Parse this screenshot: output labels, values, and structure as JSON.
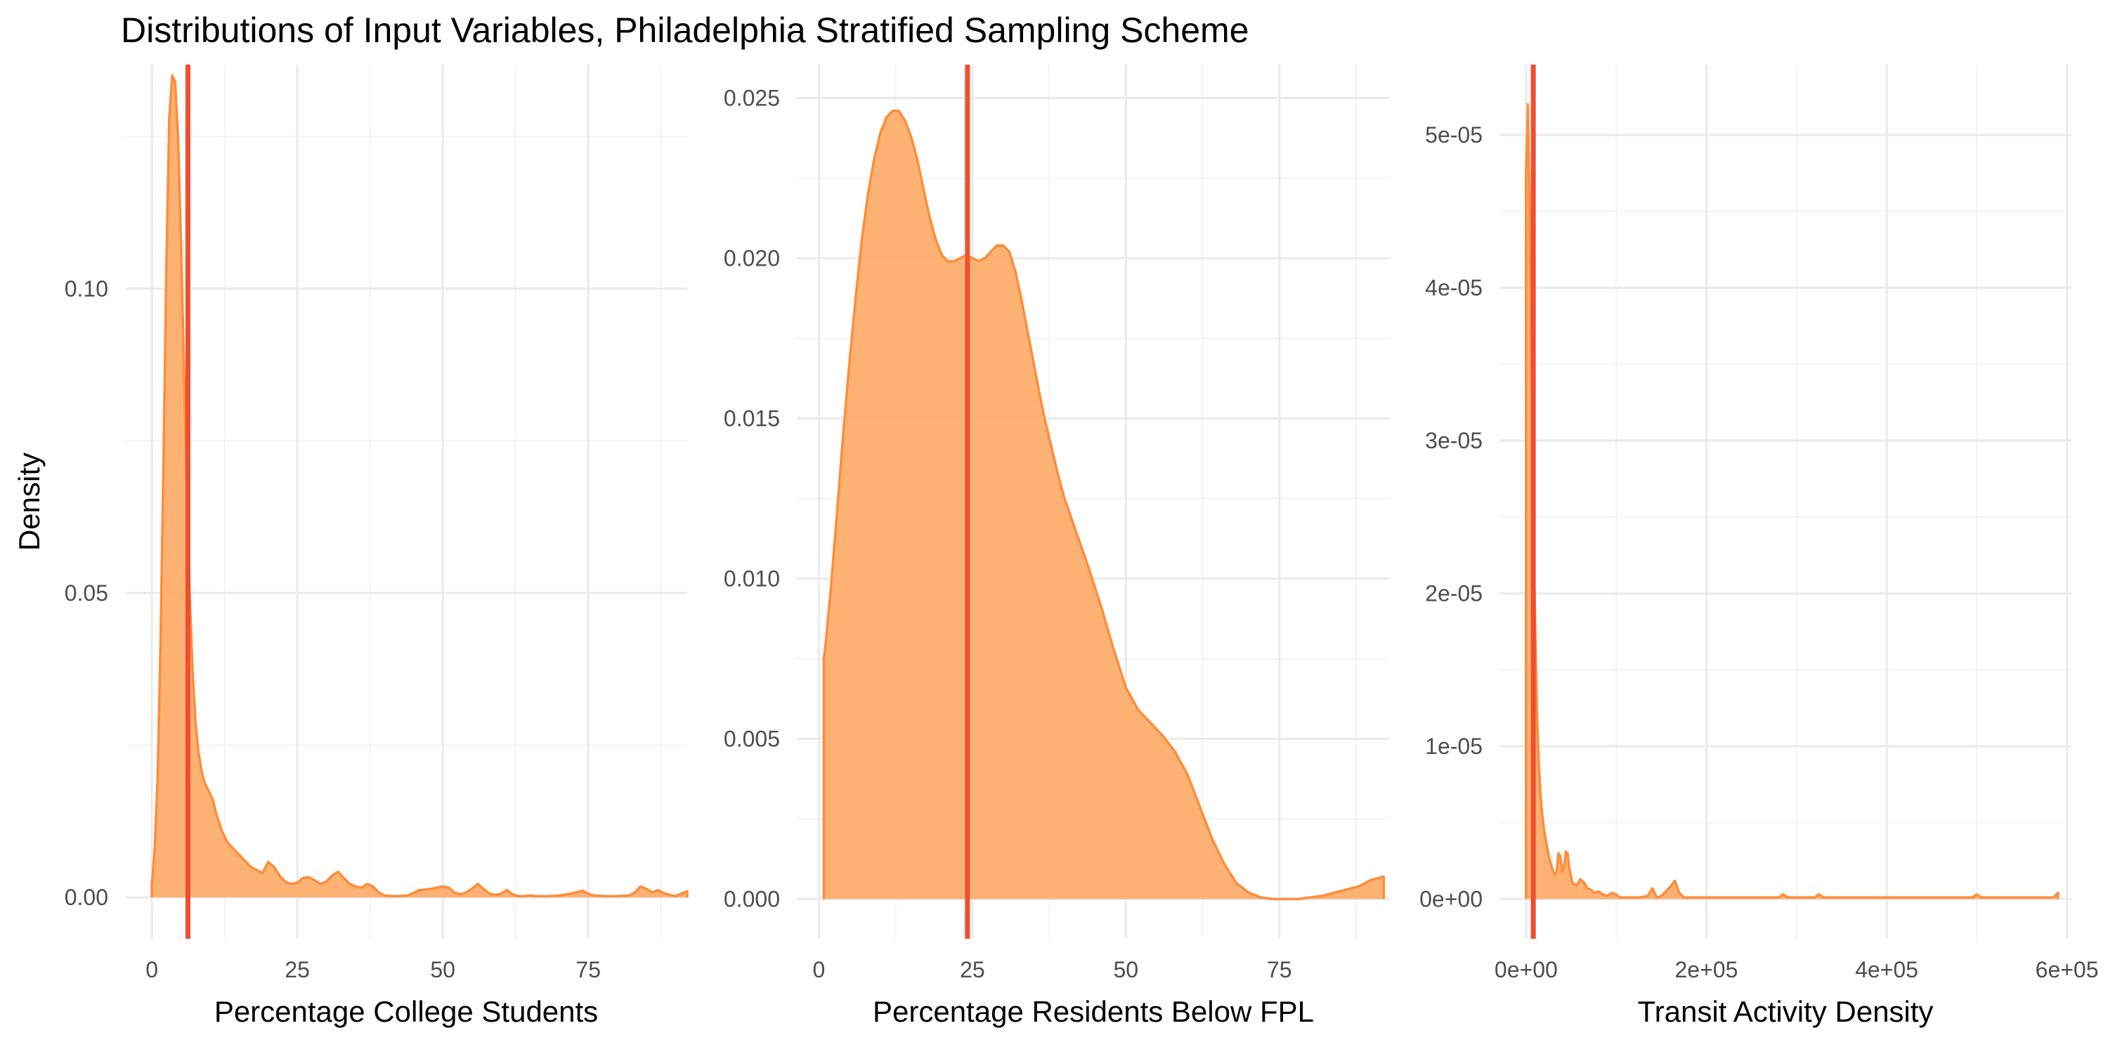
{
  "title": "Distributions of Input Variables, Philadelphia Stratified Sampling Scheme",
  "colors": {
    "fill": "#fdae6b",
    "outline": "#fd8d3c",
    "vline": "#f04e2e",
    "grid": "#ebebeb"
  },
  "chart_data": [
    {
      "type": "area",
      "xlabel": "Percentage College Students",
      "ylabel": "Density",
      "xlim": [
        -4.6,
        92
      ],
      "ylim": [
        -0.0068,
        0.1368
      ],
      "x_ticks": [
        0,
        25,
        50,
        75
      ],
      "x_tick_labels": [
        "0",
        "25",
        "50",
        "75"
      ],
      "y_ticks": [
        0,
        0.05,
        0.1
      ],
      "y_tick_labels": [
        "0.00",
        "0.05",
        "0.10"
      ],
      "grid": true,
      "vline": 6.2,
      "density": {
        "x": [
          0,
          0.5,
          1,
          1.5,
          2,
          2.5,
          3,
          3.5,
          4,
          4.5,
          5,
          5.5,
          6,
          6.5,
          7,
          7.5,
          8,
          8.5,
          9,
          9.5,
          10,
          10.5,
          11,
          12,
          13,
          14,
          15,
          16,
          17,
          18,
          19,
          20,
          21,
          22,
          23,
          24,
          25,
          26,
          27,
          28,
          29,
          30,
          31,
          32,
          33,
          34,
          35,
          36,
          37,
          38,
          39,
          40,
          42,
          44,
          46,
          48,
          50,
          51,
          52,
          53,
          54,
          55,
          56,
          57,
          58,
          59,
          60,
          61,
          62,
          63,
          64,
          65,
          66,
          68,
          70,
          72,
          74,
          75,
          76,
          78,
          80,
          82,
          83,
          84,
          85,
          86,
          87,
          88,
          89,
          90,
          91,
          92
        ],
        "y": [
          0.002,
          0.008,
          0.02,
          0.042,
          0.072,
          0.104,
          0.128,
          0.135,
          0.134,
          0.125,
          0.108,
          0.088,
          0.068,
          0.05,
          0.037,
          0.029,
          0.024,
          0.021,
          0.019,
          0.018,
          0.017,
          0.016,
          0.014,
          0.011,
          0.009,
          0.008,
          0.007,
          0.006,
          0.005,
          0.0045,
          0.004,
          0.0058,
          0.005,
          0.0035,
          0.0025,
          0.0022,
          0.0024,
          0.0032,
          0.0033,
          0.0028,
          0.0022,
          0.0026,
          0.0036,
          0.0042,
          0.0032,
          0.0022,
          0.0018,
          0.0016,
          0.0022,
          0.0018,
          0.0008,
          0.0003,
          0.0002,
          0.0003,
          0.0012,
          0.0014,
          0.0018,
          0.0016,
          0.0008,
          0.0005,
          0.0008,
          0.0014,
          0.0022,
          0.0014,
          0.0006,
          0.0004,
          0.0006,
          0.0012,
          0.0005,
          0.0002,
          0.0002,
          0.0003,
          0.0002,
          0.0002,
          0.0003,
          0.0006,
          0.0011,
          0.0006,
          0.0003,
          0.0002,
          0.0002,
          0.0003,
          0.0008,
          0.0018,
          0.0014,
          0.0008,
          0.0012,
          0.0007,
          0.0004,
          0.0002,
          0.0006,
          0.001
        ]
      }
    },
    {
      "type": "area",
      "xlabel": "Percentage Residents Below FPL",
      "ylabel": "",
      "xlim": [
        -3.6,
        93
      ],
      "ylim": [
        -0.00124,
        0.02604
      ],
      "x_ticks": [
        0,
        25,
        50,
        75
      ],
      "x_tick_labels": [
        "0",
        "25",
        "50",
        "75"
      ],
      "y_ticks": [
        0,
        0.005,
        0.01,
        0.015,
        0.02,
        0.025
      ],
      "y_tick_labels": [
        "0.000",
        "0.005",
        "0.010",
        "0.015",
        "0.020",
        "0.025"
      ],
      "grid": true,
      "vline": 24.2,
      "density": {
        "x": [
          0.8,
          1,
          2,
          3,
          4,
          5,
          6,
          7,
          8,
          9,
          10,
          11,
          12,
          13,
          14,
          15,
          16,
          17,
          18,
          19,
          20,
          21,
          22,
          23,
          24,
          25,
          26,
          27,
          28,
          29,
          30,
          31,
          32,
          33,
          34,
          35,
          36,
          37,
          38,
          39,
          40,
          42,
          44,
          46,
          48,
          50,
          52,
          54,
          56,
          58,
          60,
          62,
          64,
          66,
          68,
          70,
          72,
          74,
          76,
          78,
          80,
          82,
          84,
          86,
          88,
          90,
          92
        ],
        "y": [
          0.0075,
          0.0078,
          0.0098,
          0.0122,
          0.0146,
          0.0168,
          0.0188,
          0.0206,
          0.022,
          0.0231,
          0.0239,
          0.0244,
          0.0246,
          0.0246,
          0.0243,
          0.0238,
          0.0231,
          0.0222,
          0.0213,
          0.0206,
          0.0201,
          0.0199,
          0.0199,
          0.02,
          0.0201,
          0.02,
          0.0199,
          0.02,
          0.0202,
          0.0204,
          0.0204,
          0.0202,
          0.0196,
          0.0187,
          0.0177,
          0.0167,
          0.0157,
          0.0148,
          0.014,
          0.0132,
          0.0125,
          0.0114,
          0.0103,
          0.0091,
          0.0078,
          0.0066,
          0.0059,
          0.0055,
          0.0051,
          0.0046,
          0.0039,
          0.0029,
          0.0019,
          0.0011,
          0.0005,
          0.0002,
          5e-05,
          0.0,
          0.0,
          0.0,
          5e-05,
          0.0001,
          0.0002,
          0.0003,
          0.0004,
          0.0006,
          0.0007
        ]
      }
    },
    {
      "type": "area",
      "xlabel": "Transit Activity Density",
      "ylabel": "",
      "xlim": [
        -29500,
        605000
      ],
      "ylim": [
        -2.6e-06,
        5.46e-05
      ],
      "x_ticks": [
        0,
        200000,
        400000,
        600000
      ],
      "x_tick_labels": [
        "0e+00",
        "2e+05",
        "4e+05",
        "6e+05"
      ],
      "y_ticks": [
        0,
        1e-05,
        2e-05,
        3e-05,
        4e-05,
        5e-05
      ],
      "y_tick_labels": [
        "0e+00",
        "1e-05",
        "2e-05",
        "3e-05",
        "4e-05",
        "5e-05"
      ],
      "grid": true,
      "vline": 8000,
      "density": {
        "x": [
          0,
          2000,
          4000,
          6000,
          8000,
          10000,
          12000,
          14000,
          16000,
          18000,
          20000,
          22000,
          24000,
          26000,
          28000,
          30000,
          32000,
          34000,
          36000,
          38000,
          40000,
          42000,
          44000,
          46000,
          48000,
          50000,
          52000,
          56000,
          60000,
          64000,
          68000,
          72000,
          76000,
          80000,
          85000,
          90000,
          95000,
          100000,
          104000,
          108000,
          115000,
          125000,
          135000,
          140000,
          145000,
          150000,
          160000,
          165000,
          170000,
          175000,
          200000,
          250000,
          280000,
          285000,
          290000,
          320000,
          325000,
          330000,
          400000,
          495000,
          500000,
          505000,
          585000,
          590000
        ],
        "y": [
          4.75e-05,
          5.2e-05,
          4.5e-05,
          3.5e-05,
          2.5e-05,
          1.8e-05,
          1.25e-05,
          9e-06,
          6.8e-06,
          5.5e-06,
          4.5e-06,
          3.8e-06,
          3.2e-06,
          2.6e-06,
          2.2e-06,
          1.8e-06,
          1.6e-06,
          1.8e-06,
          3e-06,
          2.8e-06,
          1.8e-06,
          2e-06,
          3.1e-06,
          3e-06,
          2e-06,
          1.4e-06,
          1e-06,
          9e-07,
          1.3e-06,
          1.1e-06,
          7e-07,
          6e-07,
          4e-07,
          5e-07,
          3e-07,
          2e-07,
          4e-07,
          3e-07,
          1e-07,
          1e-07,
          1e-07,
          1e-07,
          2e-07,
          7e-07,
          1e-07,
          2e-07,
          8e-07,
          1.2e-06,
          4e-07,
          1e-07,
          1e-07,
          1e-07,
          1e-07,
          3e-07,
          1e-07,
          1e-07,
          3e-07,
          1e-07,
          1e-07,
          1e-07,
          3e-07,
          1e-07,
          1e-07,
          4e-07
        ]
      }
    }
  ]
}
